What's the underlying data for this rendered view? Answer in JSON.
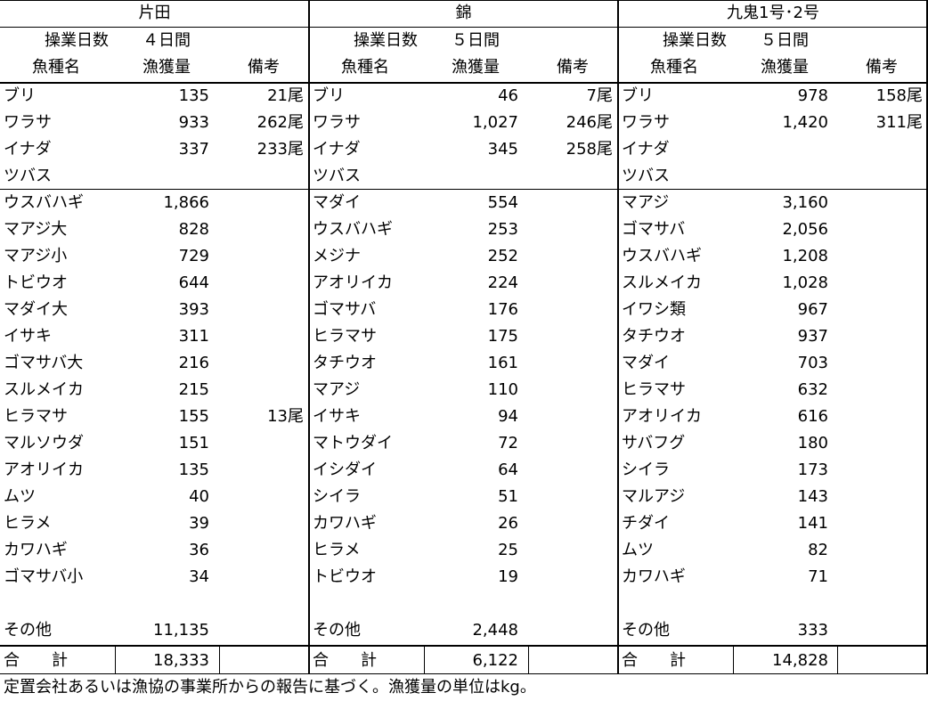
{
  "columns": [
    {
      "title": "片田",
      "days_label": "操業日数",
      "days_value": "４日間",
      "header": {
        "name": "魚種名",
        "catch": "漁獲量",
        "note": "備考"
      },
      "rows_top": [
        {
          "name": "ブリ",
          "catch": "135",
          "note": "21尾"
        },
        {
          "name": "ワラサ",
          "catch": "933",
          "note": "262尾"
        },
        {
          "name": "イナダ",
          "catch": "337",
          "note": "233尾"
        },
        {
          "name": "ツバス",
          "catch": "",
          "note": ""
        }
      ],
      "rows_main": [
        {
          "name": "ウスバハギ",
          "catch": "1,866",
          "note": ""
        },
        {
          "name": "マアジ大",
          "catch": "828",
          "note": ""
        },
        {
          "name": "マアジ小",
          "catch": "729",
          "note": ""
        },
        {
          "name": "トビウオ",
          "catch": "644",
          "note": ""
        },
        {
          "name": "マダイ大",
          "catch": "393",
          "note": ""
        },
        {
          "name": "イサキ",
          "catch": "311",
          "note": ""
        },
        {
          "name": "ゴマサバ大",
          "catch": "216",
          "note": ""
        },
        {
          "name": "スルメイカ",
          "catch": "215",
          "note": ""
        },
        {
          "name": "ヒラマサ",
          "catch": "155",
          "note": "13尾"
        },
        {
          "name": "マルソウダ",
          "catch": "151",
          "note": ""
        },
        {
          "name": "アオリイカ",
          "catch": "135",
          "note": ""
        },
        {
          "name": "ムツ",
          "catch": "40",
          "note": ""
        },
        {
          "name": "ヒラメ",
          "catch": "39",
          "note": ""
        },
        {
          "name": "カワハギ",
          "catch": "36",
          "note": ""
        },
        {
          "name": "ゴマサバ小",
          "catch": "34",
          "note": ""
        }
      ],
      "other": {
        "name": "その他",
        "catch": "11,135"
      },
      "total": {
        "label": "合　　計",
        "value": "18,333"
      }
    },
    {
      "title": "錦",
      "days_label": "操業日数",
      "days_value": "５日間",
      "header": {
        "name": "魚種名",
        "catch": "漁獲量",
        "note": "備考"
      },
      "rows_top": [
        {
          "name": "ブリ",
          "catch": "46",
          "note": "7尾"
        },
        {
          "name": "ワラサ",
          "catch": "1,027",
          "note": "246尾"
        },
        {
          "name": "イナダ",
          "catch": "345",
          "note": "258尾"
        },
        {
          "name": "ツバス",
          "catch": "",
          "note": ""
        }
      ],
      "rows_main": [
        {
          "name": "マダイ",
          "catch": "554",
          "note": ""
        },
        {
          "name": "ウスバハギ",
          "catch": "253",
          "note": ""
        },
        {
          "name": "メジナ",
          "catch": "252",
          "note": ""
        },
        {
          "name": "アオリイカ",
          "catch": "224",
          "note": ""
        },
        {
          "name": "ゴマサバ",
          "catch": "176",
          "note": ""
        },
        {
          "name": "ヒラマサ",
          "catch": "175",
          "note": ""
        },
        {
          "name": "タチウオ",
          "catch": "161",
          "note": ""
        },
        {
          "name": "マアジ",
          "catch": "110",
          "note": ""
        },
        {
          "name": "イサキ",
          "catch": "94",
          "note": ""
        },
        {
          "name": "マトウダイ",
          "catch": "72",
          "note": ""
        },
        {
          "name": "イシダイ",
          "catch": "64",
          "note": ""
        },
        {
          "name": "シイラ",
          "catch": "51",
          "note": ""
        },
        {
          "name": "カワハギ",
          "catch": "26",
          "note": ""
        },
        {
          "name": "ヒラメ",
          "catch": "25",
          "note": ""
        },
        {
          "name": "トビウオ",
          "catch": "19",
          "note": ""
        }
      ],
      "other": {
        "name": "その他",
        "catch": "2,448"
      },
      "total": {
        "label": "合　　計",
        "value": "6,122"
      }
    },
    {
      "title": "九鬼1号･2号",
      "days_label": "操業日数",
      "days_value": "５日間",
      "header": {
        "name": "魚種名",
        "catch": "漁獲量",
        "note": "備考"
      },
      "rows_top": [
        {
          "name": "ブリ",
          "catch": "978",
          "note": "158尾"
        },
        {
          "name": "ワラサ",
          "catch": "1,420",
          "note": "311尾"
        },
        {
          "name": "イナダ",
          "catch": "",
          "note": ""
        },
        {
          "name": "ツバス",
          "catch": "",
          "note": ""
        }
      ],
      "rows_main": [
        {
          "name": "マアジ",
          "catch": "3,160",
          "note": ""
        },
        {
          "name": "ゴマサバ",
          "catch": "2,056",
          "note": ""
        },
        {
          "name": "ウスバハギ",
          "catch": "1,208",
          "note": ""
        },
        {
          "name": "スルメイカ",
          "catch": "1,028",
          "note": ""
        },
        {
          "name": "イワシ類",
          "catch": "967",
          "note": ""
        },
        {
          "name": "タチウオ",
          "catch": "937",
          "note": ""
        },
        {
          "name": "マダイ",
          "catch": "703",
          "note": ""
        },
        {
          "name": "ヒラマサ",
          "catch": "632",
          "note": ""
        },
        {
          "name": "アオリイカ",
          "catch": "616",
          "note": ""
        },
        {
          "name": "サバフグ",
          "catch": "180",
          "note": ""
        },
        {
          "name": "シイラ",
          "catch": "173",
          "note": ""
        },
        {
          "name": "マルアジ",
          "catch": "143",
          "note": ""
        },
        {
          "name": "チダイ",
          "catch": "141",
          "note": ""
        },
        {
          "name": "ムツ",
          "catch": "82",
          "note": ""
        },
        {
          "name": "カワハギ",
          "catch": "71",
          "note": ""
        }
      ],
      "other": {
        "name": "その他",
        "catch": "333"
      },
      "total": {
        "label": "合　　計",
        "value": "14,828"
      }
    }
  ],
  "footer": "定置会社あるいは漁協の事業所からの報告に基づく。漁獲量の単位はkg。"
}
